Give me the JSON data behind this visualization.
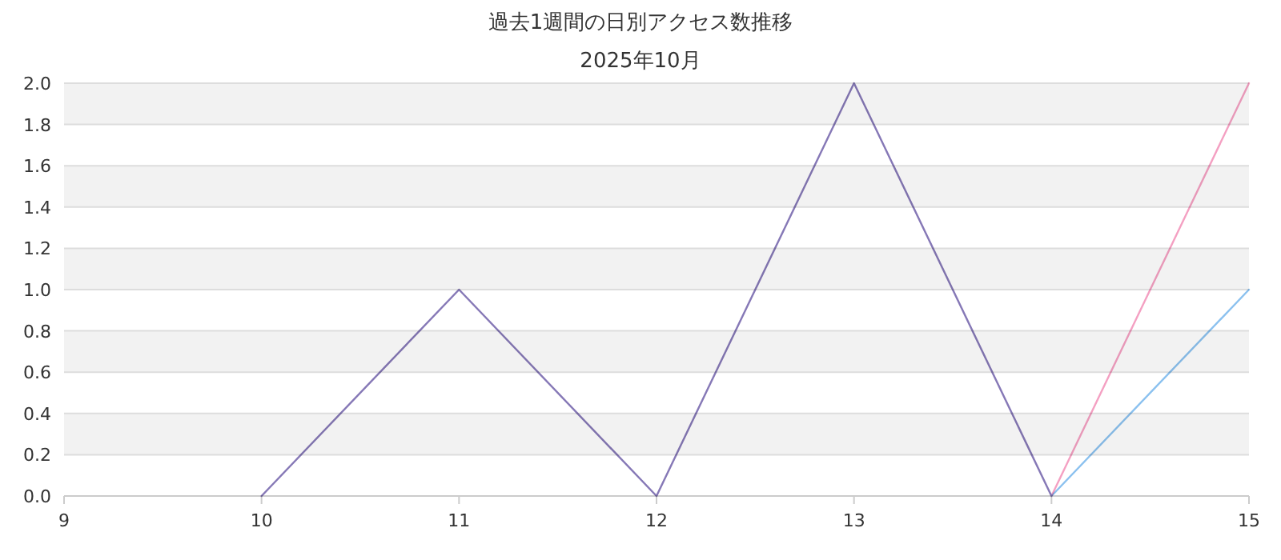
{
  "chart_data": {
    "type": "line",
    "title": "過去1週間の日別アクセス数推移",
    "subtitle": "2025年10月",
    "x": [
      10,
      11,
      12,
      13,
      14,
      15
    ],
    "series": [
      {
        "color": "#5aa6e8",
        "values": [
          0,
          1,
          0,
          2,
          0,
          1
        ]
      },
      {
        "color": "#f077a8",
        "values": [
          0,
          1,
          0,
          2,
          0,
          2
        ]
      }
    ],
    "xlim": [
      9,
      15
    ],
    "xticks": [
      9,
      10,
      11,
      12,
      13,
      14,
      15
    ],
    "ylim": [
      0,
      2
    ],
    "yticks": [
      {
        "value": 0,
        "label": "0.0"
      },
      0.2,
      0.4,
      0.6,
      0.8,
      {
        "value": 1,
        "label": "1.0"
      },
      1.2,
      1.4,
      1.6,
      1.8,
      {
        "value": 2,
        "label": "2.0"
      }
    ],
    "grid": "y",
    "marker": "none",
    "line_style": "solid"
  }
}
